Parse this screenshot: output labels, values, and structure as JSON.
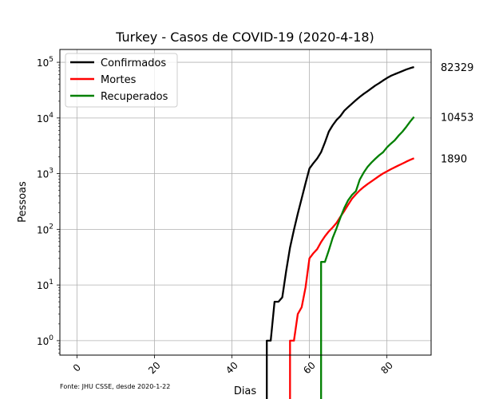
{
  "chart_data": {
    "type": "line",
    "title": "Turkey - Casos de COVID-19 (2020-4-18)",
    "xlabel": "Dias",
    "ylabel": "Pessoas",
    "yscale": "log",
    "xlim": [
      -4.4,
      91.4
    ],
    "ylim": [
      0.55,
      170000
    ],
    "xticks": [
      0,
      20,
      40,
      60,
      80
    ],
    "ytick_labels": [
      {
        "value": 1,
        "base": "10",
        "exp": "0"
      },
      {
        "value": 10,
        "base": "10",
        "exp": "1"
      },
      {
        "value": 100,
        "base": "10",
        "exp": "2"
      },
      {
        "value": 1000,
        "base": "10",
        "exp": "3"
      },
      {
        "value": 10000,
        "base": "10",
        "exp": "4"
      },
      {
        "value": 100000,
        "base": "10",
        "exp": "5"
      }
    ],
    "grid": true,
    "legend_position": "top-left",
    "source_note": "Fonte: JHU CSSE, desde 2020-1-22",
    "series": [
      {
        "name": "Confirmados",
        "color": "#000000",
        "final_label": "82329",
        "points": [
          [
            49,
            0
          ],
          [
            49,
            1
          ],
          [
            50,
            1
          ],
          [
            51,
            5
          ],
          [
            52,
            5
          ],
          [
            53,
            6
          ],
          [
            54,
            18
          ],
          [
            55,
            47
          ],
          [
            56,
            98
          ],
          [
            57,
            191
          ],
          [
            58,
            359
          ],
          [
            59,
            670
          ],
          [
            60,
            1236
          ],
          [
            61,
            1529
          ],
          [
            62,
            1872
          ],
          [
            63,
            2433
          ],
          [
            64,
            3629
          ],
          [
            65,
            5698
          ],
          [
            66,
            7402
          ],
          [
            67,
            9217
          ],
          [
            68,
            10827
          ],
          [
            69,
            13531
          ],
          [
            70,
            15679
          ],
          [
            71,
            18135
          ],
          [
            72,
            20921
          ],
          [
            73,
            23934
          ],
          [
            74,
            27069
          ],
          [
            75,
            30217
          ],
          [
            76,
            34109
          ],
          [
            77,
            38226
          ],
          [
            78,
            42282
          ],
          [
            79,
            47029
          ],
          [
            80,
            52167
          ],
          [
            81,
            56956
          ],
          [
            82,
            61049
          ],
          [
            83,
            65111
          ],
          [
            84,
            69392
          ],
          [
            85,
            74193
          ],
          [
            86,
            78546
          ],
          [
            87,
            82329
          ]
        ]
      },
      {
        "name": "Mortes",
        "color": "#ff0000",
        "final_label": "1890",
        "points": [
          [
            55,
            0
          ],
          [
            55,
            1
          ],
          [
            56,
            1
          ],
          [
            57,
            3
          ],
          [
            58,
            4
          ],
          [
            59,
            9
          ],
          [
            60,
            30
          ],
          [
            61,
            37
          ],
          [
            62,
            44
          ],
          [
            63,
            59
          ],
          [
            64,
            75
          ],
          [
            65,
            92
          ],
          [
            66,
            108
          ],
          [
            67,
            131
          ],
          [
            68,
            168
          ],
          [
            69,
            214
          ],
          [
            70,
            277
          ],
          [
            71,
            356
          ],
          [
            72,
            425
          ],
          [
            73,
            501
          ],
          [
            74,
            574
          ],
          [
            75,
            649
          ],
          [
            76,
            725
          ],
          [
            77,
            812
          ],
          [
            78,
            908
          ],
          [
            79,
            1006
          ],
          [
            80,
            1101
          ],
          [
            81,
            1198
          ],
          [
            82,
            1296
          ],
          [
            83,
            1403
          ],
          [
            84,
            1518
          ],
          [
            85,
            1643
          ],
          [
            86,
            1769
          ],
          [
            87,
            1890
          ]
        ]
      },
      {
        "name": "Recuperados",
        "color": "#008000",
        "final_label": "10453",
        "points": [
          [
            63,
            0
          ],
          [
            63,
            26
          ],
          [
            64,
            26
          ],
          [
            65,
            42
          ],
          [
            66,
            70
          ],
          [
            67,
            105
          ],
          [
            68,
            162
          ],
          [
            69,
            243
          ],
          [
            70,
            333
          ],
          [
            71,
            415
          ],
          [
            72,
            484
          ],
          [
            73,
            786
          ],
          [
            74,
            1042
          ],
          [
            75,
            1326
          ],
          [
            76,
            1582
          ],
          [
            77,
            1846
          ],
          [
            78,
            2142
          ],
          [
            79,
            2423
          ],
          [
            80,
            2965
          ],
          [
            81,
            3445
          ],
          [
            82,
            3957
          ],
          [
            83,
            4799
          ],
          [
            84,
            5674
          ],
          [
            85,
            6928
          ],
          [
            86,
            8631
          ],
          [
            87,
            10453
          ]
        ]
      }
    ]
  }
}
